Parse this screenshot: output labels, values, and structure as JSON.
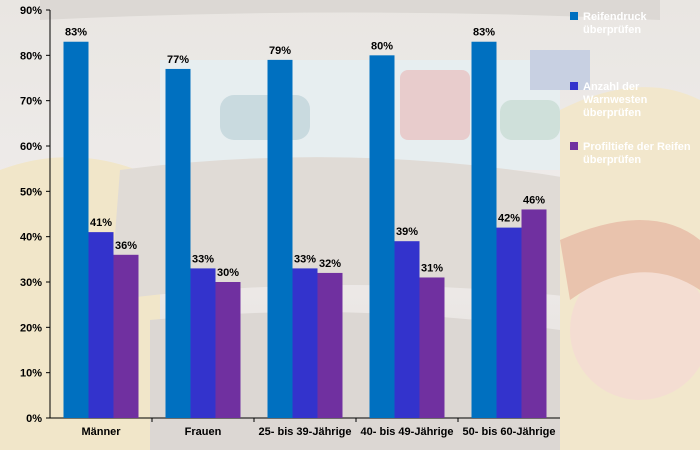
{
  "chart_data": {
    "type": "bar",
    "categories": [
      "Männer",
      "Frauen",
      "25- bis 39-Jährige",
      "40- bis 49-Jährige",
      "50- bis 60-Jährige"
    ],
    "series": [
      {
        "name": "Reifendruck überprüfen",
        "legend_lines": [
          "Reifendruck",
          "überprüfen"
        ],
        "color": "#0070c0",
        "values": [
          83,
          77,
          79,
          80,
          83
        ]
      },
      {
        "name": "Anzahl der Warnwesten überprüfen",
        "legend_lines": [
          "Anzahl der",
          "Warnwesten",
          "überprüfen"
        ],
        "color": "#3333cc",
        "values": [
          41,
          33,
          33,
          39,
          42
        ]
      },
      {
        "name": "Profiltiefe der Reifen überprüfen",
        "legend_lines": [
          "Profiltiefe der Reifen",
          "überprüfen"
        ],
        "color": "#7030a0",
        "values": [
          36,
          30,
          32,
          31,
          46
        ]
      }
    ],
    "ylim": [
      0,
      90
    ],
    "yticks": [
      "0%",
      "10%",
      "20%",
      "30%",
      "40%",
      "50%",
      "60%",
      "70%",
      "80%",
      "90%"
    ],
    "value_labels": [
      [
        "83%",
        "77%",
        "79%",
        "80%",
        "83%"
      ],
      [
        "41%",
        "33%",
        "33%",
        "39%",
        "42%"
      ],
      [
        "36%",
        "30%",
        "32%",
        "31%",
        "46%"
      ]
    ],
    "legend_position": "right",
    "grid": false,
    "title": "",
    "xlabel": "",
    "ylabel": ""
  }
}
